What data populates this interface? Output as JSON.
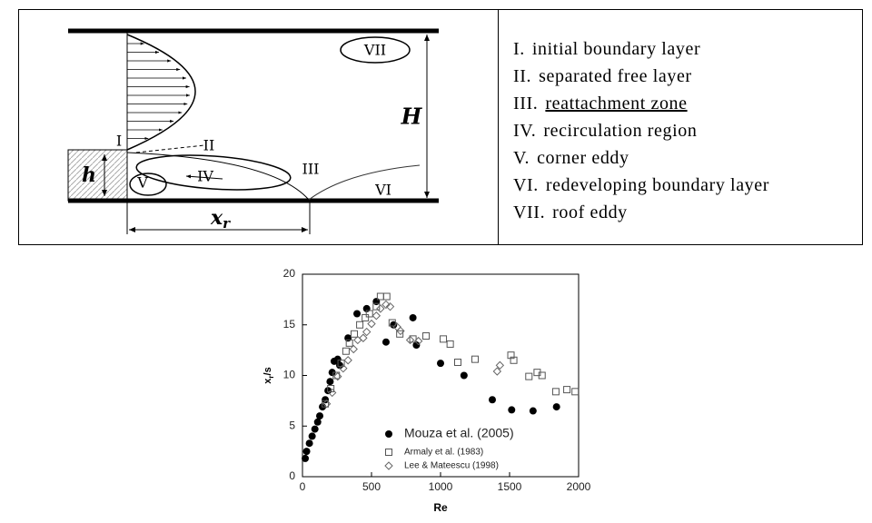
{
  "diagram": {
    "labels": {
      "I": "I",
      "II": "II",
      "III": "III",
      "IV": "IV",
      "V": "V",
      "VI": "VI",
      "VII": "VII",
      "H": "H",
      "h": "h"
    },
    "xr_label": {
      "base": "x",
      "sub": "r"
    }
  },
  "legend_list": [
    {
      "numeral": "I.",
      "text": "initial boundary layer"
    },
    {
      "numeral": "II.",
      "text": "separated free layer"
    },
    {
      "numeral": "III.",
      "text": "reattachment zone",
      "underlined": true
    },
    {
      "numeral": "IV.",
      "text": "recirculation region"
    },
    {
      "numeral": "V.",
      "text": "corner eddy"
    },
    {
      "numeral": "VI.",
      "text": "redeveloping boundary layer"
    },
    {
      "numeral": "VII.",
      "text": "roof eddy"
    }
  ],
  "chart_data": {
    "type": "scatter",
    "xlabel": "Re",
    "ylabel": {
      "main": "x",
      "sub": "r",
      "tail": "/s"
    },
    "xlim": [
      0,
      2000
    ],
    "ylim": [
      0,
      20
    ],
    "xticks": [
      0,
      500,
      1000,
      1500,
      2000
    ],
    "yticks": [
      0,
      5,
      10,
      15,
      20
    ],
    "series": [
      {
        "name": "Mouza et al. (2005)",
        "color": "#000000",
        "marker": "circle-filled",
        "x": [
          20,
          30,
          50,
          70,
          90,
          110,
          125,
          145,
          165,
          185,
          200,
          215,
          230,
          255,
          270,
          330,
          395,
          465,
          535,
          605,
          660,
          800,
          825,
          1000,
          1170,
          1375,
          1515,
          1670,
          1840
        ],
        "values": [
          1.8,
          2.5,
          3.3,
          4,
          4.7,
          5.4,
          6,
          6.9,
          7.6,
          8.5,
          9.4,
          10.3,
          11.4,
          11.6,
          11,
          13.7,
          16.1,
          16.6,
          17.3,
          13.3,
          15,
          15.7,
          13,
          11.2,
          10,
          7.6,
          6.6,
          6.5,
          6.9
        ]
      },
      {
        "name": "Armaly et al. (1983)",
        "color": "#555555",
        "marker": "square-open",
        "x": [
          165,
          205,
          245,
          280,
          315,
          340,
          375,
          415,
          455,
          485,
          535,
          565,
          610,
          650,
          705,
          800,
          895,
          1020,
          1070,
          1125,
          1250,
          1510,
          1530,
          1640,
          1700,
          1735,
          1835,
          1915,
          1975
        ],
        "values": [
          7.2,
          8.7,
          10,
          11.2,
          12.4,
          13.2,
          14.1,
          15,
          15.7,
          16.1,
          16.8,
          17.8,
          17.8,
          15.2,
          14.1,
          13.6,
          13.9,
          13.6,
          13.1,
          11.3,
          11.6,
          12,
          11.5,
          9.9,
          10.3,
          10,
          8.4,
          8.6,
          8.4
        ]
      },
      {
        "name": "Lee & Mateescu (1998)",
        "color": "#666666",
        "marker": "diamond-open",
        "x": [
          175,
          215,
          255,
          295,
          330,
          370,
          400,
          440,
          465,
          500,
          535,
          565,
          605,
          635,
          685,
          710,
          780,
          840,
          1410,
          1430
        ],
        "values": [
          7.2,
          8.3,
          9.9,
          10.7,
          11.5,
          12.6,
          13.5,
          13.7,
          14.3,
          15.1,
          15.9,
          16.6,
          17,
          16.8,
          14.8,
          14.4,
          13.5,
          13.4,
          10.4,
          11
        ]
      }
    ]
  }
}
